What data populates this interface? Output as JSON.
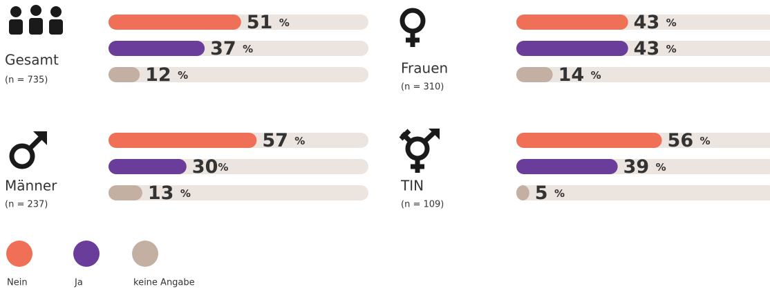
{
  "legend": {
    "items": [
      {
        "name": "Nein",
        "color": "#f07057"
      },
      {
        "name": "Ja",
        "color": "#6a3d9a"
      },
      {
        "name": "keine Angabe",
        "color": "#c4b0a3"
      }
    ]
  },
  "chart_data": [
    {
      "type": "bar",
      "title": "Gesamt",
      "subtitle": "(n = 735)",
      "values": [
        51,
        37,
        12
      ],
      "value_labels": [
        "51 %",
        "37 %",
        "12 %"
      ],
      "xlim": [
        0,
        100
      ]
    },
    {
      "type": "bar",
      "title": "Frauen",
      "subtitle": "(n = 310)",
      "values": [
        43,
        43,
        14
      ],
      "value_labels": [
        "43 %",
        "43 %",
        "14 %"
      ],
      "xlim": [
        0,
        100
      ]
    },
    {
      "type": "bar",
      "title": "Männer",
      "subtitle": "(n = 237)",
      "values": [
        57,
        30,
        13
      ],
      "value_labels": [
        "57 %",
        "30%",
        "13 %"
      ],
      "xlim": [
        0,
        100
      ]
    },
    {
      "type": "bar",
      "title": "TIN",
      "subtitle": "(n = 109)",
      "values": [
        56,
        39,
        5
      ],
      "value_labels": [
        "56 %",
        "39 %",
        "5 %"
      ],
      "xlim": [
        0,
        100
      ]
    }
  ]
}
